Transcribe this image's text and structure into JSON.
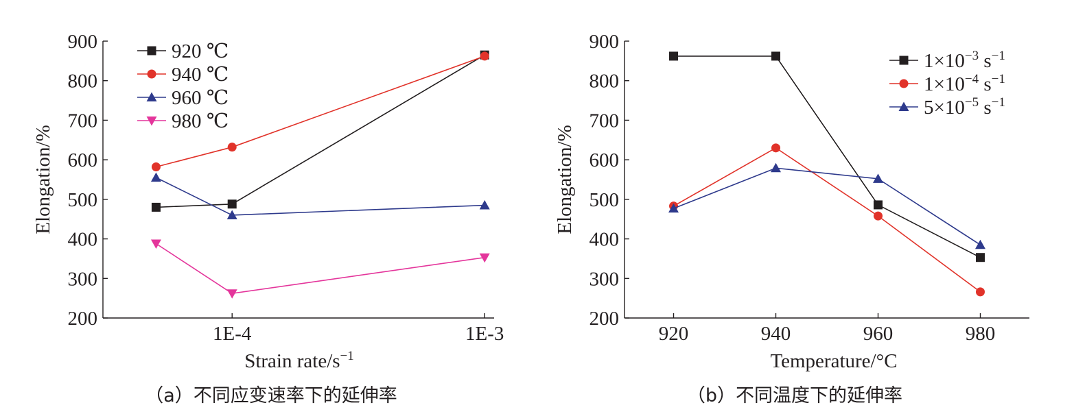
{
  "chart_data": [
    {
      "id": "a",
      "type": "line",
      "x_scale": "log",
      "x_ticks": [
        "1E-4",
        "1E-3"
      ],
      "x": [
        5e-05,
        0.0001,
        0.001
      ],
      "xlabel": "Strain rate/s",
      "xlabel_sup": "−1",
      "ylabel": "Elongation/%",
      "ylim": [
        200,
        900
      ],
      "y_ticks": [
        "200",
        "300",
        "400",
        "500",
        "600",
        "700",
        "800",
        "900"
      ],
      "legend_position": "top-left",
      "series": [
        {
          "name": "920 ℃",
          "color": "#231f20",
          "marker": "square",
          "values": [
            480,
            488,
            865
          ]
        },
        {
          "name": "940 ℃",
          "color": "#e1332a",
          "marker": "circle",
          "values": [
            582,
            632,
            862
          ]
        },
        {
          "name": "960 ℃",
          "color": "#2e3a8c",
          "marker": "triangle",
          "values": [
            555,
            460,
            485
          ]
        },
        {
          "name": "980 ℃",
          "color": "#e4359b",
          "marker": "triangle-down",
          "values": [
            388,
            262,
            353
          ]
        }
      ],
      "caption": "（a）不同应变速率下的延伸率"
    },
    {
      "id": "b",
      "type": "line",
      "categories": [
        "920",
        "940",
        "960",
        "980"
      ],
      "xlabel": "Temperature/°C",
      "ylabel": "Elongation/%",
      "ylim": [
        200,
        900
      ],
      "y_ticks": [
        "200",
        "300",
        "400",
        "500",
        "600",
        "700",
        "800",
        "900"
      ],
      "legend_position": "top-right",
      "series": [
        {
          "name": "1×10",
          "name_sup": "−3",
          "name_unit": " s",
          "name_unit_sup": "−1",
          "color": "#231f20",
          "marker": "square",
          "values": [
            862,
            862,
            486,
            353
          ]
        },
        {
          "name": "1×10",
          "name_sup": "−4",
          "name_unit": " s",
          "name_unit_sup": "−1",
          "color": "#e1332a",
          "marker": "circle",
          "values": [
            483,
            630,
            458,
            266
          ]
        },
        {
          "name": "5×10",
          "name_sup": "−5",
          "name_unit": " s",
          "name_unit_sup": "−1",
          "color": "#2e3a8c",
          "marker": "triangle",
          "values": [
            477,
            579,
            552,
            385
          ]
        }
      ],
      "caption": "（b）不同温度下的延伸率"
    }
  ]
}
